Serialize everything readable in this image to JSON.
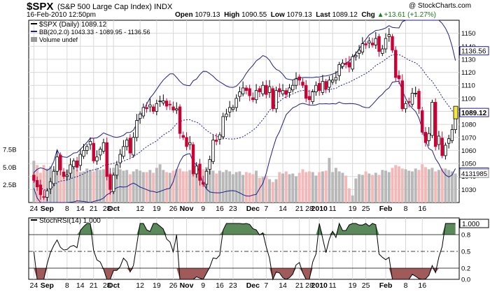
{
  "header": {
    "symbol": "$SPX",
    "name": "(S&P 500 Large Cap Index) INDX",
    "brand": "@ StockCharts.com",
    "date": "16-Feb-2010 12:50pm",
    "open_label": "Open",
    "open": "1079.13",
    "high_label": "High",
    "high": "1090.55",
    "low_label": "Low",
    "low": "1079.13",
    "last_label": "Last",
    "last": "1089.12",
    "chg_label": "Chg",
    "chg": "+13.61 (+1.27%)",
    "chg_icon": "up-triangle-icon"
  },
  "legend": {
    "price": "$SPX (Daily) 1089.12",
    "bb": "BB(20,2.0) 1043.33 - 1089.95 - 1136.56",
    "volume": "Volume undef",
    "rsi": "StochRSI(14) 1.000"
  },
  "colors": {
    "up": "#ffffff",
    "down": "#cc0033",
    "bb": "#1e1e8c",
    "ma": "#1e1e8c",
    "vol_up": "#b8b8b8",
    "vol_down": "#f4b8b8",
    "rsi_fill_hi": "#5a8a5a",
    "rsi_fill_lo": "#a05a5a",
    "last_tag": "#f5e642"
  },
  "chart_data": [
    {
      "type": "candlestick",
      "title": "$SPX (Daily) 1089.12",
      "ylim": [
        1020,
        1160
      ],
      "yticks": [
        1030,
        1040,
        1050,
        1060,
        1070,
        1080,
        1090,
        1100,
        1110,
        1120,
        1130,
        1140,
        1150
      ],
      "xlabels": [
        "24",
        "Sep",
        "8",
        "14",
        "21",
        "28",
        "Oct",
        "12",
        "19",
        "26",
        "Nov",
        "9",
        "16",
        "23",
        "Dec",
        "7",
        "14",
        "21",
        "28",
        "2010",
        "11",
        "19",
        "25",
        "Feb",
        "8",
        "16"
      ],
      "price_tags": [
        {
          "label": "1136.56",
          "value": 1136.56
        },
        {
          "label": "1089.12",
          "value": 1089.12
        },
        {
          "label": "1043.33",
          "value": 1043.33
        }
      ],
      "close": [
        1037,
        1032,
        1026,
        1024,
        1029,
        1036,
        1044,
        1055,
        1045,
        1040,
        1041,
        1049,
        1052,
        1047,
        1057,
        1060,
        1063,
        1067,
        1052,
        1055,
        1061,
        1066,
        1040,
        1030,
        1041,
        1049,
        1057,
        1063,
        1068,
        1058,
        1070,
        1083,
        1088,
        1093,
        1092,
        1095,
        1090,
        1096,
        1098,
        1098,
        1094,
        1095,
        1091,
        1092,
        1073,
        1070,
        1063,
        1066,
        1042,
        1048,
        1037,
        1034,
        1044,
        1053,
        1068,
        1067,
        1072,
        1086,
        1088,
        1093,
        1093,
        1100,
        1105,
        1108,
        1106,
        1102,
        1099,
        1106,
        1105,
        1110,
        1103,
        1109,
        1092,
        1106,
        1105,
        1106,
        1103,
        1108,
        1110,
        1115,
        1114,
        1110,
        1100,
        1099,
        1105,
        1110,
        1106,
        1113,
        1107,
        1114,
        1114,
        1116,
        1126,
        1127,
        1126,
        1124,
        1132,
        1133,
        1137,
        1142,
        1141,
        1144,
        1141,
        1146,
        1136,
        1138,
        1146,
        1149,
        1137,
        1116,
        1115,
        1092,
        1096,
        1097,
        1104,
        1104,
        1092,
        1074,
        1066,
        1073,
        1097,
        1063,
        1071,
        1056,
        1064,
        1069,
        1076,
        1089
      ]
    },
    {
      "type": "bar",
      "title": "Volume",
      "yticks": [
        "2.5B",
        "5.0B",
        "7.5B"
      ],
      "ylim": [
        0,
        8.5
      ],
      "price_tag": "4131985",
      "values": [
        5.9,
        5.3,
        4.2,
        5.3,
        4.8,
        5.1,
        4.7,
        4.4,
        4.6,
        4.3,
        4.7,
        4.8,
        5.0,
        4.6,
        4.3,
        4.4,
        4.8,
        4.6,
        4.4,
        4.9,
        4.6,
        4.7,
        4.6,
        4.2,
        4.9,
        5.0,
        4.7,
        4.5,
        4.6,
        4.0,
        4.4,
        4.7,
        4.5,
        4.3,
        4.3,
        4.6,
        4.2,
        4.9,
        5.4,
        4.6,
        4.3,
        4.2,
        4.5,
        4.7,
        4.8,
        4.4,
        4.4,
        4.6,
        4.9,
        4.7,
        5.5,
        4.7,
        5.0,
        4.6,
        4.5,
        4.1,
        4.5,
        4.3,
        4.6,
        4.4,
        4.0,
        4.3,
        4.4,
        3.9,
        4.3,
        4.2,
        4.0,
        4.5,
        3.5,
        3.6,
        3.8,
        3.3,
        2.9,
        3.3,
        4.3,
        4.1,
        4.4,
        4.0,
        4.1,
        3.7,
        4.2,
        4.7,
        4.3,
        4.4,
        4.3,
        3.8,
        4.3,
        4.4,
        4.5,
        6.3,
        4.3,
        4.9,
        4.4,
        4.2,
        3.8,
        2.0,
        1.0,
        3.4,
        4.0,
        3.9,
        4.4,
        4.1,
        3.9,
        4.2,
        3.9,
        4.6,
        4.5,
        4.3,
        4.9,
        5.3,
        5.1,
        4.8,
        4.7,
        4.5,
        4.4,
        4.8,
        4.6,
        5.4,
        5.0,
        4.7,
        4.9,
        4.4,
        4.6,
        4.8,
        4.8,
        4.6,
        4.4,
        4.1
      ]
    },
    {
      "type": "line",
      "title": "StochRSI(14) 1.000",
      "ylim": [
        0,
        1.1
      ],
      "yticks": [
        0.0,
        0.2,
        0.5,
        0.8,
        1.0
      ],
      "ytick_labels": [
        "0.0",
        "0.2",
        "0.5",
        "0.8",
        "1.0"
      ],
      "price_tag": "1.000",
      "xlabels": [
        "24",
        "Sep",
        "8",
        "14",
        "21",
        "28",
        "Oct",
        "12",
        "19",
        "26",
        "Nov",
        "9",
        "16",
        "23",
        "Dec",
        "7",
        "14",
        "21",
        "28",
        "2010",
        "11",
        "19",
        "25",
        "Feb",
        "8",
        "16"
      ]
    }
  ]
}
